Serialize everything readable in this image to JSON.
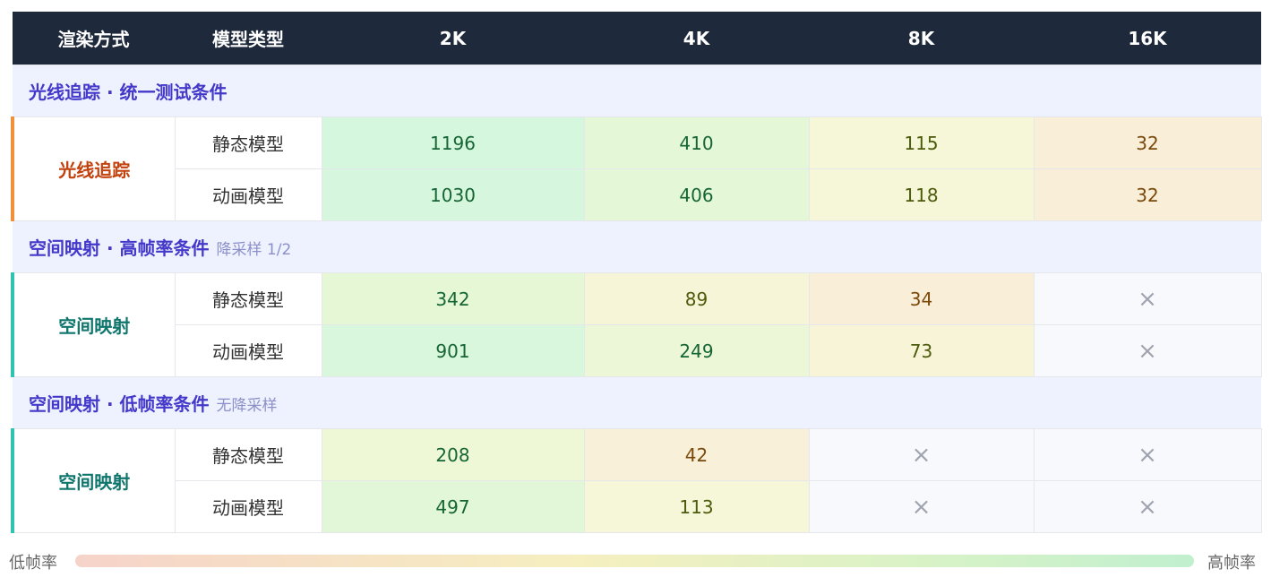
{
  "table": {
    "header": [
      "渲染方式",
      "模型类型",
      "2K",
      "4K",
      "8K",
      "16K"
    ],
    "sections": [
      {
        "title": "光线追踪 · 统一测试条件",
        "method": "光线追踪",
        "rows": [
          {
            "model": "静态模型",
            "values": [
              1196,
              410,
              115,
              32
            ]
          },
          {
            "model": "动画模型",
            "values": [
              1030,
              406,
              118,
              32
            ]
          }
        ]
      },
      {
        "title": "空间映射 · 高帧率条件",
        "note": "降采样 1/2",
        "method": "空间映射",
        "rows": [
          {
            "model": "静态模型",
            "values": [
              342,
              89,
              34,
              "×"
            ]
          },
          {
            "model": "动画模型",
            "values": [
              901,
              249,
              73,
              "×"
            ]
          }
        ]
      },
      {
        "title": "空间映射 · 低帧率条件",
        "note": "无降采样",
        "method": "空间映射",
        "rows": [
          {
            "model": "静态模型",
            "values": [
              208,
              42,
              "×",
              "×"
            ]
          },
          {
            "model": "动画模型",
            "values": [
              497,
              113,
              "×",
              "×"
            ]
          }
        ]
      }
    ]
  },
  "legend": {
    "low": "低帧率",
    "high": "高帧率"
  }
}
